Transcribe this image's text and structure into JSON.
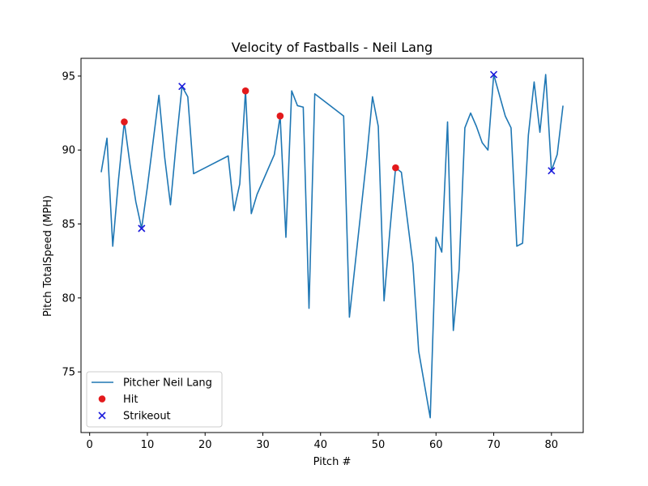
{
  "chart_data": {
    "type": "line",
    "title": "Velocity of Fastballs - Neil Lang",
    "xlabel": "Pitch #",
    "ylabel": "Pitch TotalSpeed (MPH)",
    "xlim": [
      -1.5,
      85.5
    ],
    "ylim": [
      70.9,
      96.2
    ],
    "xticks": [
      0,
      10,
      20,
      30,
      40,
      50,
      60,
      70,
      80
    ],
    "yticks": [
      75,
      80,
      85,
      90,
      95
    ],
    "grid": false,
    "legend_position": "lower-left",
    "series": [
      {
        "name": "Pitcher Neil Lang",
        "kind": "line",
        "color": "#1f77b4",
        "x": [
          2,
          3,
          4,
          5,
          6,
          7,
          8,
          9,
          10,
          11,
          12,
          13,
          14,
          15,
          16,
          17,
          18,
          24,
          25,
          26,
          27,
          28,
          29,
          32,
          33,
          34,
          35,
          36,
          37,
          38,
          39,
          44,
          45,
          48,
          49,
          50,
          51,
          52,
          53,
          54,
          56,
          57,
          59,
          60,
          61,
          62,
          63,
          64,
          65,
          66,
          67,
          68,
          69,
          70,
          72,
          73,
          74,
          75,
          76,
          77,
          78,
          79,
          80,
          81,
          82
        ],
        "y": [
          88.5,
          90.8,
          83.5,
          88.0,
          91.9,
          89.0,
          86.5,
          84.7,
          87.5,
          90.6,
          93.7,
          89.5,
          86.3,
          90.5,
          94.3,
          93.6,
          88.4,
          89.6,
          85.9,
          87.7,
          94.0,
          85.7,
          87.0,
          89.7,
          92.3,
          84.1,
          94.0,
          93.0,
          92.9,
          79.3,
          93.8,
          92.3,
          78.7,
          89.5,
          93.6,
          91.6,
          79.8,
          84.5,
          88.8,
          88.5,
          82.3,
          76.4,
          71.9,
          84.1,
          83.1,
          91.9,
          77.8,
          81.9,
          91.5,
          92.5,
          91.6,
          90.5,
          90.0,
          95.1,
          92.3,
          91.5,
          83.5,
          83.7,
          91.0,
          94.6,
          91.2,
          95.1,
          88.6,
          89.7,
          93.0
        ]
      },
      {
        "name": "Hit",
        "kind": "scatter",
        "marker": "circle",
        "color": "#e31a1c",
        "x": [
          6,
          27,
          33,
          53
        ],
        "y": [
          91.9,
          94.0,
          92.3,
          88.8
        ]
      },
      {
        "name": "Strikeout",
        "kind": "scatter",
        "marker": "x",
        "color": "#1a1adb",
        "x": [
          9,
          16,
          70,
          80
        ],
        "y": [
          84.7,
          94.3,
          95.1,
          88.6
        ]
      }
    ]
  }
}
